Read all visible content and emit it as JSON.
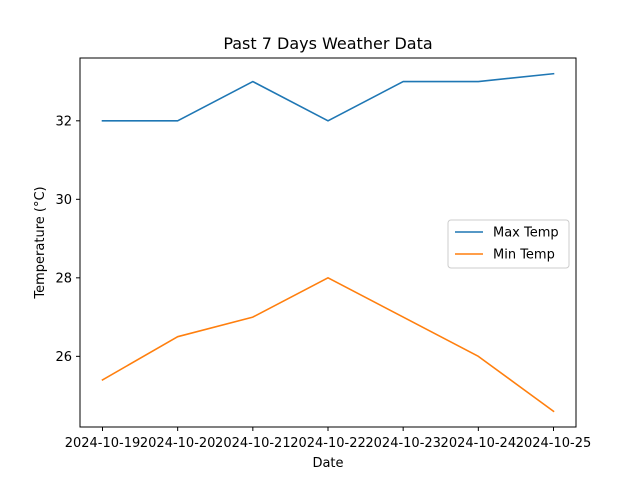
{
  "chart_data": {
    "type": "line",
    "title": "Past 7 Days Weather Data",
    "xlabel": "Date",
    "ylabel": "Temperature (°C)",
    "categories": [
      "2024-10-19",
      "2024-10-20",
      "2024-10-21",
      "2024-10-22",
      "2024-10-23",
      "2024-10-24",
      "2024-10-25"
    ],
    "series": [
      {
        "name": "Max Temp",
        "color": "#1f77b4",
        "values": [
          32,
          32,
          33,
          32,
          33,
          33,
          33.2
        ]
      },
      {
        "name": "Min Temp",
        "color": "#ff7f0e",
        "values": [
          25.4,
          26.5,
          27,
          28,
          27,
          26,
          24.6
        ]
      }
    ],
    "ylim": [
      24.2,
      33.6
    ],
    "yticks": [
      26,
      28,
      30,
      32
    ],
    "grid": false,
    "legend_position": "center-right"
  }
}
